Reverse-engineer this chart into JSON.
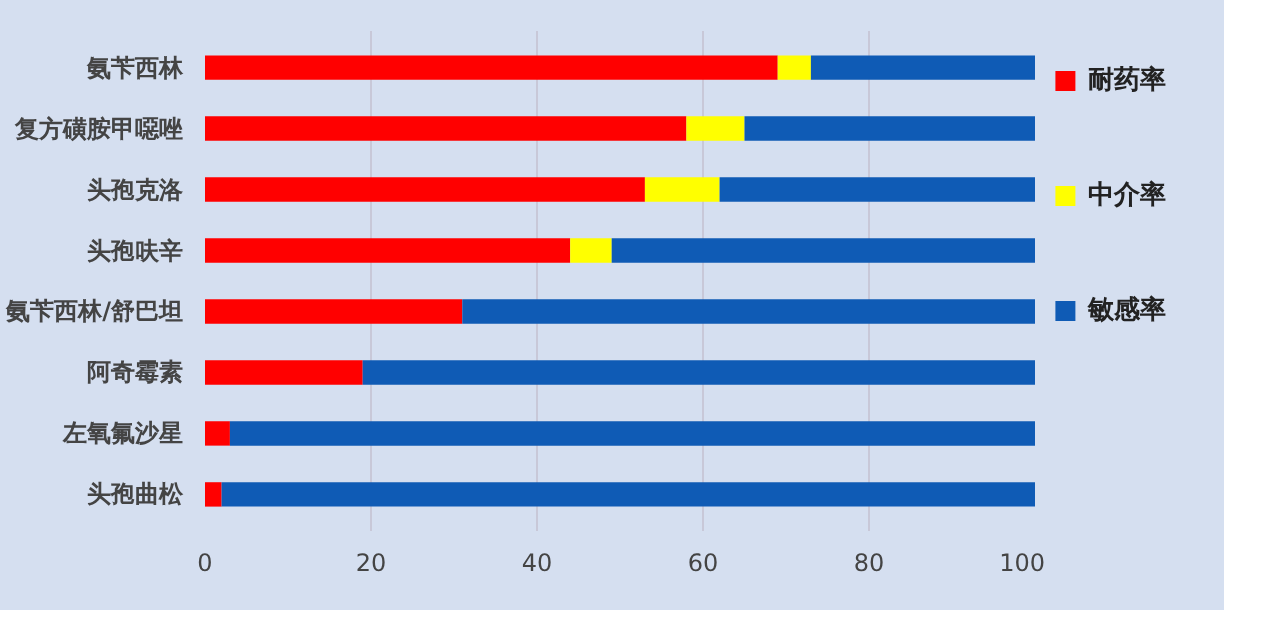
{
  "chart_data": {
    "type": "bar",
    "orientation": "horizontal",
    "stacked": true,
    "categories": [
      "氨苄西林",
      "复方磺胺甲噁唑",
      "头孢克洛",
      "头孢呋辛",
      "氨苄西林/舒巴坦",
      "阿奇霉素",
      "左氧氟沙星",
      "头孢曲松"
    ],
    "series": [
      {
        "name": "耐药率",
        "color": "#ff0000",
        "values": [
          69,
          58,
          53,
          44,
          31,
          19,
          3,
          2
        ]
      },
      {
        "name": "中介率",
        "color": "#ffff00",
        "values": [
          4,
          7,
          9,
          5,
          0,
          0,
          0,
          0
        ]
      },
      {
        "name": "敏感率",
        "color": "#0f5bb5",
        "values": [
          27,
          35,
          38,
          51,
          69,
          81,
          97,
          98
        ]
      }
    ],
    "xlim": [
      0,
      100
    ],
    "xticks": [
      0,
      20,
      40,
      60,
      80,
      100
    ],
    "grid": "x",
    "legend": "right"
  }
}
